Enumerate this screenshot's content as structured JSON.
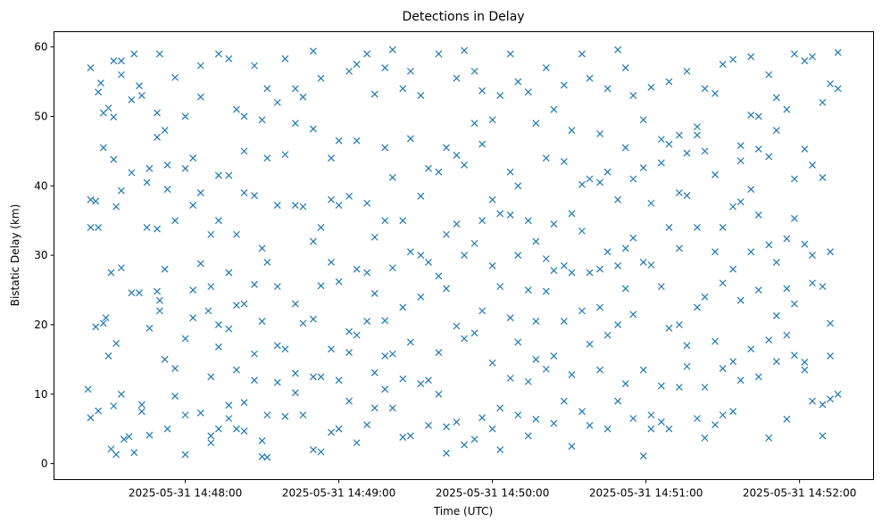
{
  "chart_data": {
    "type": "scatter",
    "title": "Detections in Delay",
    "xlabel": "Time (UTC)",
    "ylabel": "Bistatic Delay (km)",
    "x_units": "seconds after 2025-05-31 14:47:00",
    "xlim": [
      8.7,
      328.9
    ],
    "ylim": [
      -2.3,
      62.2
    ],
    "grid": false,
    "marker": "x",
    "color": "#1f77b4",
    "xticks": [
      {
        "value": 60,
        "label": "2025-05-31 14:48:00"
      },
      {
        "value": 120,
        "label": "2025-05-31 14:49:00"
      },
      {
        "value": 180,
        "label": "2025-05-31 14:50:00"
      },
      {
        "value": 240,
        "label": "2025-05-31 14:51:00"
      },
      {
        "value": 300,
        "label": "2025-05-31 14:52:00"
      }
    ],
    "yticks": [
      {
        "value": 0,
        "label": "0"
      },
      {
        "value": 10,
        "label": "10"
      },
      {
        "value": 20,
        "label": "20"
      },
      {
        "value": 30,
        "label": "30"
      },
      {
        "value": 40,
        "label": "40"
      },
      {
        "value": 50,
        "label": "50"
      },
      {
        "value": 60,
        "label": "60"
      }
    ],
    "points": [
      [
        23,
        57
      ],
      [
        23,
        38
      ],
      [
        23,
        34
      ],
      [
        22,
        10.7
      ],
      [
        23,
        6.6
      ],
      [
        25,
        19.7
      ],
      [
        25,
        37.8
      ],
      [
        26,
        53.5
      ],
      [
        27,
        54.8
      ],
      [
        26,
        34
      ],
      [
        26,
        7.6
      ],
      [
        28,
        45.5
      ],
      [
        28,
        50.5
      ],
      [
        29,
        21
      ],
      [
        28,
        20.2
      ],
      [
        30,
        51.2
      ],
      [
        30,
        15.5
      ],
      [
        31,
        27.5
      ],
      [
        31,
        2.1
      ],
      [
        32,
        58
      ],
      [
        32,
        43.8
      ],
      [
        33,
        37
      ],
      [
        33,
        17.3
      ],
      [
        33,
        1.3
      ],
      [
        32,
        8.3
      ],
      [
        32,
        49.9
      ],
      [
        35,
        58
      ],
      [
        35,
        56
      ],
      [
        35,
        39.3
      ],
      [
        35,
        28.2
      ],
      [
        35,
        10
      ],
      [
        36,
        3.5
      ],
      [
        38,
        3.9
      ],
      [
        39,
        24.6
      ],
      [
        39,
        41.9
      ],
      [
        39,
        52.4
      ],
      [
        40,
        59
      ],
      [
        40,
        1.6
      ],
      [
        42,
        54.4
      ],
      [
        42,
        24.6
      ],
      [
        43,
        7.5
      ],
      [
        43,
        8.5
      ],
      [
        43,
        53
      ],
      [
        45,
        40.5
      ],
      [
        45,
        34
      ],
      [
        46,
        19.5
      ],
      [
        46,
        4.1
      ],
      [
        46,
        42.5
      ],
      [
        49,
        50.5
      ],
      [
        49,
        47
      ],
      [
        49,
        33.8
      ],
      [
        49,
        24.8
      ],
      [
        50,
        23.5
      ],
      [
        50,
        22
      ],
      [
        50,
        59
      ],
      [
        52,
        48
      ],
      [
        52,
        28
      ],
      [
        52,
        15
      ],
      [
        53,
        5
      ],
      [
        53,
        39.5
      ],
      [
        53,
        43
      ],
      [
        56,
        13.7
      ],
      [
        56,
        35
      ],
      [
        56,
        55.6
      ],
      [
        56,
        9.7
      ],
      [
        60,
        50
      ],
      [
        60,
        42.5
      ],
      [
        60,
        18
      ],
      [
        60,
        1.3
      ],
      [
        60,
        7
      ],
      [
        63,
        44
      ],
      [
        63,
        37.2
      ],
      [
        63,
        25
      ],
      [
        63,
        21
      ],
      [
        66,
        57.3
      ],
      [
        66,
        39
      ],
      [
        66,
        28.8
      ],
      [
        66,
        7.3
      ],
      [
        66,
        52.8
      ],
      [
        70,
        33
      ],
      [
        70,
        25.5
      ],
      [
        70,
        12.5
      ],
      [
        70,
        4
      ],
      [
        70,
        3
      ],
      [
        69,
        22
      ],
      [
        73,
        59
      ],
      [
        73,
        41.5
      ],
      [
        73,
        35
      ],
      [
        73,
        16.8
      ],
      [
        73,
        5
      ],
      [
        73,
        20
      ],
      [
        77,
        58.3
      ],
      [
        77,
        41.5
      ],
      [
        77,
        27.5
      ],
      [
        77,
        8.4
      ],
      [
        77,
        6.5
      ],
      [
        77,
        19.4
      ],
      [
        80,
        51
      ],
      [
        80,
        33
      ],
      [
        80,
        22.8
      ],
      [
        80,
        13.5
      ],
      [
        80,
        5
      ],
      [
        83,
        50
      ],
      [
        83,
        45
      ],
      [
        83,
        39
      ],
      [
        83,
        23
      ],
      [
        83,
        8.8
      ],
      [
        83,
        4.7
      ],
      [
        87,
        57.3
      ],
      [
        87,
        38.6
      ],
      [
        87,
        25.8
      ],
      [
        87,
        15.8
      ],
      [
        87,
        12
      ],
      [
        90,
        49.5
      ],
      [
        90,
        31
      ],
      [
        90,
        20.5
      ],
      [
        90,
        1
      ],
      [
        90,
        3.3
      ],
      [
        92,
        54
      ],
      [
        92,
        44
      ],
      [
        92,
        29
      ],
      [
        92,
        7
      ],
      [
        92,
        0.9
      ],
      [
        96,
        52
      ],
      [
        96,
        37.2
      ],
      [
        96,
        25.5
      ],
      [
        96,
        17
      ],
      [
        96,
        11.7
      ],
      [
        99,
        58.3
      ],
      [
        99,
        44.5
      ],
      [
        99,
        16.5
      ],
      [
        99,
        6.8
      ],
      [
        103,
        54
      ],
      [
        103,
        49
      ],
      [
        103,
        37.2
      ],
      [
        103,
        23
      ],
      [
        103,
        13
      ],
      [
        103,
        10.2
      ],
      [
        106,
        52.8
      ],
      [
        106,
        37
      ],
      [
        106,
        20.2
      ],
      [
        106,
        7
      ],
      [
        110,
        59.4
      ],
      [
        110,
        48.2
      ],
      [
        110,
        32
      ],
      [
        110,
        20.8
      ],
      [
        110,
        12.5
      ],
      [
        110,
        2
      ],
      [
        113,
        55.5
      ],
      [
        113,
        34
      ],
      [
        113,
        25.6
      ],
      [
        113,
        12.5
      ],
      [
        113,
        1.7
      ],
      [
        117,
        44
      ],
      [
        117,
        38
      ],
      [
        117,
        29
      ],
      [
        117,
        16.5
      ],
      [
        117,
        4.5
      ],
      [
        120,
        46.5
      ],
      [
        120,
        37.2
      ],
      [
        120,
        26.2
      ],
      [
        120,
        12
      ],
      [
        120,
        5
      ],
      [
        124,
        56.5
      ],
      [
        124,
        38.5
      ],
      [
        124,
        19
      ],
      [
        124,
        16
      ],
      [
        124,
        9
      ],
      [
        127,
        57.5
      ],
      [
        127,
        46.5
      ],
      [
        127,
        28
      ],
      [
        127,
        18.5
      ],
      [
        127,
        3
      ],
      [
        131,
        59
      ],
      [
        131,
        37.5
      ],
      [
        131,
        27.5
      ],
      [
        131,
        20.5
      ],
      [
        131,
        5.6
      ],
      [
        134,
        53.2
      ],
      [
        134,
        32.6
      ],
      [
        134,
        24.5
      ],
      [
        134,
        13.1
      ],
      [
        134,
        8
      ],
      [
        138,
        57
      ],
      [
        138,
        45.5
      ],
      [
        138,
        35
      ],
      [
        138,
        20.6
      ],
      [
        138,
        15.5
      ],
      [
        138,
        10.7
      ],
      [
        141,
        59.6
      ],
      [
        141,
        41.2
      ],
      [
        141,
        28.2
      ],
      [
        141,
        15.8
      ],
      [
        141,
        8
      ],
      [
        145,
        54
      ],
      [
        145,
        35
      ],
      [
        145,
        22.5
      ],
      [
        145,
        12.2
      ],
      [
        145,
        3.8
      ],
      [
        148,
        56.5
      ],
      [
        148,
        46.8
      ],
      [
        148,
        30.5
      ],
      [
        148,
        17.5
      ],
      [
        148,
        4
      ],
      [
        152,
        53
      ],
      [
        152,
        38.5
      ],
      [
        152,
        30
      ],
      [
        152,
        24
      ],
      [
        152,
        11.5
      ],
      [
        155,
        42.5
      ],
      [
        155,
        29
      ],
      [
        155,
        12
      ],
      [
        155,
        5.5
      ],
      [
        159,
        59
      ],
      [
        159,
        42
      ],
      [
        159,
        27
      ],
      [
        159,
        16
      ],
      [
        159,
        10
      ],
      [
        162,
        45.5
      ],
      [
        162,
        33
      ],
      [
        162,
        25.2
      ],
      [
        162,
        5.3
      ],
      [
        162,
        1.5
      ],
      [
        166,
        55.5
      ],
      [
        166,
        44.4
      ],
      [
        166,
        34.5
      ],
      [
        166,
        19.8
      ],
      [
        166,
        6
      ],
      [
        169,
        59.5
      ],
      [
        169,
        43
      ],
      [
        169,
        30
      ],
      [
        169,
        18
      ],
      [
        169,
        2.7
      ],
      [
        173,
        56.5
      ],
      [
        173,
        49
      ],
      [
        173,
        31.7
      ],
      [
        173,
        18.8
      ],
      [
        173,
        3.5
      ],
      [
        176,
        53.7
      ],
      [
        176,
        46
      ],
      [
        176,
        35
      ],
      [
        176,
        22
      ],
      [
        176,
        6.6
      ],
      [
        180,
        49.5
      ],
      [
        180,
        38
      ],
      [
        180,
        28.5
      ],
      [
        180,
        14.5
      ],
      [
        180,
        5
      ],
      [
        183,
        53
      ],
      [
        183,
        36
      ],
      [
        183,
        25.5
      ],
      [
        183,
        8
      ],
      [
        183,
        2
      ],
      [
        187,
        59
      ],
      [
        187,
        42
      ],
      [
        187,
        35.8
      ],
      [
        187,
        21
      ],
      [
        187,
        12.3
      ],
      [
        190,
        55
      ],
      [
        190,
        40
      ],
      [
        190,
        30
      ],
      [
        190,
        17.5
      ],
      [
        190,
        7
      ],
      [
        194,
        53.5
      ],
      [
        194,
        35
      ],
      [
        194,
        25
      ],
      [
        194,
        11.8
      ],
      [
        194,
        4
      ],
      [
        197,
        49
      ],
      [
        197,
        32
      ],
      [
        197,
        20.5
      ],
      [
        197,
        15
      ],
      [
        197,
        6.4
      ],
      [
        201,
        57
      ],
      [
        201,
        44
      ],
      [
        201,
        29.5
      ],
      [
        201,
        24.8
      ],
      [
        201,
        13.6
      ],
      [
        204,
        51
      ],
      [
        204,
        34.5
      ],
      [
        204,
        27.8
      ],
      [
        204,
        15.5
      ],
      [
        204,
        5.8
      ],
      [
        208,
        54.5
      ],
      [
        208,
        43.5
      ],
      [
        208,
        28.5
      ],
      [
        208,
        20.5
      ],
      [
        208,
        9
      ],
      [
        211,
        48
      ],
      [
        211,
        36
      ],
      [
        211,
        27.5
      ],
      [
        211,
        12.8
      ],
      [
        211,
        2.5
      ],
      [
        215,
        59
      ],
      [
        215,
        40.2
      ],
      [
        215,
        33.5
      ],
      [
        215,
        22
      ],
      [
        215,
        7.5
      ],
      [
        218,
        55.5
      ],
      [
        218,
        41
      ],
      [
        218,
        27.5
      ],
      [
        218,
        17.2
      ],
      [
        218,
        5.5
      ],
      [
        222,
        47.5
      ],
      [
        222,
        40.5
      ],
      [
        222,
        28
      ],
      [
        222,
        22.5
      ],
      [
        222,
        13.5
      ],
      [
        225,
        54
      ],
      [
        225,
        42
      ],
      [
        225,
        30.5
      ],
      [
        225,
        18.5
      ],
      [
        225,
        5
      ],
      [
        229,
        59.6
      ],
      [
        229,
        38
      ],
      [
        229,
        28.5
      ],
      [
        229,
        20
      ],
      [
        229,
        9
      ],
      [
        232,
        57
      ],
      [
        232,
        45.5
      ],
      [
        232,
        31
      ],
      [
        232,
        25.2
      ],
      [
        232,
        11.5
      ],
      [
        235,
        53
      ],
      [
        235,
        41
      ],
      [
        235,
        32.5
      ],
      [
        235,
        21.5
      ],
      [
        235,
        6.5
      ],
      [
        239,
        49.5
      ],
      [
        239,
        42.6
      ],
      [
        239,
        29
      ],
      [
        239,
        13.5
      ],
      [
        239,
        1.1
      ],
      [
        242,
        54.2
      ],
      [
        242,
        37.5
      ],
      [
        242,
        28.6
      ],
      [
        242,
        7
      ],
      [
        242,
        5
      ],
      [
        246,
        46.7
      ],
      [
        246,
        43.3
      ],
      [
        246,
        25.5
      ],
      [
        246,
        11.2
      ],
      [
        246,
        6
      ],
      [
        249,
        55
      ],
      [
        249,
        46
      ],
      [
        249,
        34
      ],
      [
        249,
        19.5
      ],
      [
        249,
        5
      ],
      [
        253,
        47.3
      ],
      [
        253,
        39
      ],
      [
        253,
        31
      ],
      [
        253,
        20
      ],
      [
        253,
        11
      ],
      [
        256,
        56.5
      ],
      [
        256,
        44.7
      ],
      [
        256,
        38.6
      ],
      [
        256,
        17
      ],
      [
        256,
        14
      ],
      [
        260,
        48.5
      ],
      [
        260,
        47.3
      ],
      [
        260,
        34
      ],
      [
        260,
        22.5
      ],
      [
        260,
        6.5
      ],
      [
        263,
        54
      ],
      [
        263,
        45
      ],
      [
        263,
        24
      ],
      [
        263,
        11
      ],
      [
        263,
        3.7
      ],
      [
        267,
        53.3
      ],
      [
        267,
        41.6
      ],
      [
        267,
        30.5
      ],
      [
        267,
        17.6
      ],
      [
        267,
        5.6
      ],
      [
        270,
        57.5
      ],
      [
        270,
        34
      ],
      [
        270,
        26
      ],
      [
        270,
        13.7
      ],
      [
        270,
        7
      ],
      [
        274,
        58.2
      ],
      [
        274,
        37
      ],
      [
        274,
        28
      ],
      [
        274,
        14.7
      ],
      [
        274,
        7.5
      ],
      [
        277,
        45.8
      ],
      [
        277,
        43.6
      ],
      [
        277,
        37.7
      ],
      [
        277,
        23.5
      ],
      [
        277,
        12
      ],
      [
        281,
        58.6
      ],
      [
        281,
        50.2
      ],
      [
        281,
        39.5
      ],
      [
        281,
        30.5
      ],
      [
        281,
        16.5
      ],
      [
        284,
        50
      ],
      [
        284,
        45.3
      ],
      [
        284,
        35.8
      ],
      [
        284,
        25
      ],
      [
        284,
        12.5
      ],
      [
        288,
        56
      ],
      [
        288,
        44.2
      ],
      [
        288,
        31.5
      ],
      [
        288,
        17.8
      ],
      [
        288,
        3.7
      ],
      [
        291,
        52.7
      ],
      [
        291,
        48
      ],
      [
        291,
        29
      ],
      [
        291,
        21.3
      ],
      [
        291,
        14.7
      ],
      [
        295,
        51
      ],
      [
        295,
        32.4
      ],
      [
        295,
        25.2
      ],
      [
        295,
        18.5
      ],
      [
        295,
        6.4
      ],
      [
        298,
        59
      ],
      [
        298,
        41
      ],
      [
        298,
        35.3
      ],
      [
        298,
        23
      ],
      [
        298,
        15.6
      ],
      [
        302,
        58
      ],
      [
        302,
        45.3
      ],
      [
        302,
        31.6
      ],
      [
        302,
        13.5
      ],
      [
        302,
        14.6
      ],
      [
        305,
        58.6
      ],
      [
        305,
        43
      ],
      [
        305,
        30
      ],
      [
        305,
        26
      ],
      [
        305,
        9
      ],
      [
        309,
        52
      ],
      [
        309,
        41.2
      ],
      [
        309,
        25.5
      ],
      [
        309,
        8.5
      ],
      [
        309,
        4
      ],
      [
        312,
        54.7
      ],
      [
        312,
        30.5
      ],
      [
        312,
        20.2
      ],
      [
        312,
        9.3
      ],
      [
        312,
        15.5
      ],
      [
        315,
        59.2
      ],
      [
        315,
        54
      ],
      [
        315,
        10
      ]
    ]
  }
}
